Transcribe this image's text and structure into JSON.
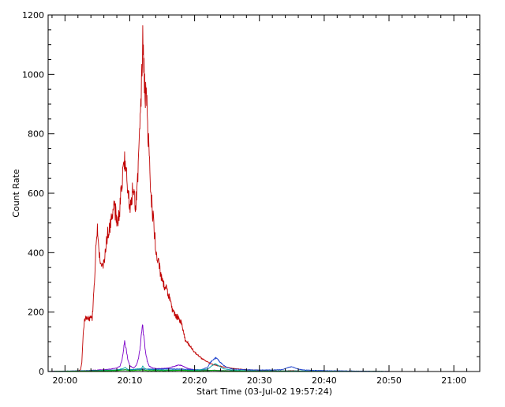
{
  "chart_data": {
    "type": "line",
    "title": "",
    "xlabel": "Start Time (03-Jul-02 19:57:24)",
    "ylabel": "Count Rate",
    "xlim_minutes_after_2000": [
      -2.6,
      64.0
    ],
    "ylim": [
      0,
      1200
    ],
    "x_ticks": [
      {
        "label": "20:00",
        "minutes_after_2000": 0
      },
      {
        "label": "20:10",
        "minutes_after_2000": 10
      },
      {
        "label": "20:20",
        "minutes_after_2000": 20
      },
      {
        "label": "20:30",
        "minutes_after_2000": 30
      },
      {
        "label": "20:40",
        "minutes_after_2000": 40
      },
      {
        "label": "20:50",
        "minutes_after_2000": 50
      },
      {
        "label": "21:00",
        "minutes_after_2000": 60
      }
    ],
    "y_ticks": [
      0,
      200,
      400,
      600,
      800,
      1000,
      1200
    ],
    "grid": false,
    "legend": "none",
    "x_unit": "minutes after 20:00",
    "series": [
      {
        "color": "#c00000",
        "points": [
          [
            -2.6,
            0
          ],
          [
            2.0,
            2
          ],
          [
            2.4,
            6
          ],
          [
            2.6,
            30
          ],
          [
            2.8,
            120
          ],
          [
            3.0,
            170
          ],
          [
            3.4,
            185
          ],
          [
            3.8,
            170
          ],
          [
            4.0,
            195
          ],
          [
            4.2,
            175
          ],
          [
            4.5,
            290
          ],
          [
            4.8,
            420
          ],
          [
            5.0,
            470
          ],
          [
            5.3,
            400
          ],
          [
            5.6,
            360
          ],
          [
            6.0,
            360
          ],
          [
            6.3,
            410
          ],
          [
            6.6,
            470
          ],
          [
            7.0,
            500
          ],
          [
            7.3,
            530
          ],
          [
            7.6,
            560
          ],
          [
            7.9,
            520
          ],
          [
            8.2,
            500
          ],
          [
            8.5,
            560
          ],
          [
            8.8,
            640
          ],
          [
            9.1,
            690
          ],
          [
            9.4,
            720
          ],
          [
            9.7,
            620
          ],
          [
            10.0,
            560
          ],
          [
            10.3,
            590
          ],
          [
            10.6,
            620
          ],
          [
            10.9,
            560
          ],
          [
            11.2,
            650
          ],
          [
            11.5,
            800
          ],
          [
            11.8,
            950
          ],
          [
            12.0,
            1105
          ],
          [
            12.3,
            960
          ],
          [
            12.6,
            900
          ],
          [
            12.9,
            780
          ],
          [
            13.2,
            620
          ],
          [
            13.6,
            520
          ],
          [
            14.0,
            420
          ],
          [
            14.4,
            370
          ],
          [
            14.8,
            320
          ],
          [
            15.2,
            290
          ],
          [
            15.6,
            280
          ],
          [
            16.0,
            260
          ],
          [
            16.5,
            210
          ],
          [
            17.0,
            190
          ],
          [
            17.5,
            180
          ],
          [
            18.0,
            165
          ],
          [
            18.5,
            110
          ],
          [
            19.0,
            95
          ],
          [
            19.5,
            80
          ],
          [
            20.0,
            65
          ],
          [
            20.5,
            55
          ],
          [
            21.0,
            45
          ],
          [
            21.5,
            38
          ],
          [
            22.0,
            32
          ],
          [
            22.5,
            26
          ],
          [
            23.0,
            22
          ],
          [
            23.5,
            20
          ],
          [
            24.0,
            18
          ],
          [
            24.5,
            15
          ],
          [
            25.0,
            14
          ],
          [
            25.5,
            12
          ],
          [
            26.0,
            10
          ],
          [
            26.5,
            9
          ],
          [
            27.0,
            8
          ],
          [
            28.0,
            6
          ],
          [
            29.0,
            5
          ],
          [
            30.0,
            4
          ],
          [
            31.0,
            3
          ],
          [
            32.0,
            3
          ],
          [
            33.0,
            2
          ],
          [
            34.0,
            2
          ],
          [
            35.0,
            3
          ],
          [
            36.0,
            2
          ],
          [
            37.0,
            1
          ],
          [
            38.0,
            1
          ],
          [
            40.0,
            1
          ],
          [
            42.0,
            1
          ],
          [
            44.0,
            1
          ],
          [
            46.0,
            0
          ],
          [
            48.0,
            0
          ],
          [
            50.0,
            0
          ]
        ]
      },
      {
        "color": "#7b00c8",
        "points": [
          [
            -2.6,
            0
          ],
          [
            2.0,
            1
          ],
          [
            4.0,
            4
          ],
          [
            6.0,
            6
          ],
          [
            7.0,
            8
          ],
          [
            7.5,
            10
          ],
          [
            8.0,
            12
          ],
          [
            8.5,
            18
          ],
          [
            8.8,
            40
          ],
          [
            9.0,
            70
          ],
          [
            9.2,
            100
          ],
          [
            9.4,
            80
          ],
          [
            9.7,
            40
          ],
          [
            10.0,
            20
          ],
          [
            10.3,
            15
          ],
          [
            10.6,
            12
          ],
          [
            11.0,
            20
          ],
          [
            11.3,
            40
          ],
          [
            11.6,
            80
          ],
          [
            11.8,
            130
          ],
          [
            11.95,
            160
          ],
          [
            12.1,
            130
          ],
          [
            12.4,
            70
          ],
          [
            12.7,
            35
          ],
          [
            13.0,
            18
          ],
          [
            13.5,
            12
          ],
          [
            14.0,
            10
          ],
          [
            15.0,
            10
          ],
          [
            16.0,
            12
          ],
          [
            17.0,
            18
          ],
          [
            17.5,
            22
          ],
          [
            18.0,
            20
          ],
          [
            18.5,
            15
          ],
          [
            19.0,
            10
          ],
          [
            20.0,
            6
          ],
          [
            21.0,
            5
          ],
          [
            22.0,
            4
          ],
          [
            23.0,
            4
          ],
          [
            24.0,
            3
          ],
          [
            25.0,
            3
          ],
          [
            26.0,
            2
          ],
          [
            28.0,
            2
          ],
          [
            30.0,
            1
          ],
          [
            32.0,
            1
          ],
          [
            34.0,
            1
          ],
          [
            36.0,
            1
          ],
          [
            40.0,
            1
          ],
          [
            44.0,
            0
          ],
          [
            50.0,
            0
          ]
        ]
      },
      {
        "color": "#1a3fcc",
        "points": [
          [
            -2.6,
            0
          ],
          [
            4.0,
            3
          ],
          [
            6.0,
            4
          ],
          [
            8.0,
            5
          ],
          [
            10.0,
            6
          ],
          [
            12.0,
            8
          ],
          [
            14.0,
            8
          ],
          [
            16.0,
            9
          ],
          [
            18.0,
            8
          ],
          [
            20.0,
            6
          ],
          [
            21.0,
            6
          ],
          [
            22.0,
            14
          ],
          [
            22.5,
            32
          ],
          [
            23.0,
            42
          ],
          [
            23.3,
            46
          ],
          [
            23.6,
            40
          ],
          [
            24.0,
            30
          ],
          [
            24.5,
            20
          ],
          [
            25.0,
            14
          ],
          [
            25.5,
            10
          ],
          [
            26.0,
            8
          ],
          [
            28.0,
            6
          ],
          [
            30.0,
            5
          ],
          [
            32.0,
            5
          ],
          [
            33.5,
            6
          ],
          [
            34.0,
            10
          ],
          [
            34.5,
            14
          ],
          [
            35.0,
            16
          ],
          [
            35.5,
            12
          ],
          [
            36.0,
            8
          ],
          [
            37.0,
            5
          ],
          [
            38.0,
            4
          ],
          [
            40.0,
            3
          ],
          [
            42.0,
            2
          ],
          [
            44.0,
            2
          ],
          [
            46.0,
            1
          ],
          [
            50.0,
            0
          ]
        ]
      },
      {
        "color": "#00a0a0",
        "points": [
          [
            -2.6,
            0
          ],
          [
            4.0,
            2
          ],
          [
            8.0,
            5
          ],
          [
            9.0,
            10
          ],
          [
            9.3,
            14
          ],
          [
            9.6,
            8
          ],
          [
            10.0,
            6
          ],
          [
            11.8,
            10
          ],
          [
            12.0,
            18
          ],
          [
            12.3,
            10
          ],
          [
            13.0,
            6
          ],
          [
            16.0,
            5
          ],
          [
            18.0,
            5
          ],
          [
            20.0,
            4
          ],
          [
            22.0,
            8
          ],
          [
            22.7,
            20
          ],
          [
            23.2,
            26
          ],
          [
            23.8,
            18
          ],
          [
            24.5,
            9
          ],
          [
            26.0,
            4
          ],
          [
            28.0,
            3
          ],
          [
            30.0,
            2
          ],
          [
            35.0,
            2
          ],
          [
            40.0,
            1
          ],
          [
            50.0,
            0
          ]
        ]
      },
      {
        "color": "#00b000",
        "points": [
          [
            -2.6,
            0
          ],
          [
            4.0,
            2
          ],
          [
            8.0,
            3
          ],
          [
            9.3,
            6
          ],
          [
            10.0,
            3
          ],
          [
            12.0,
            5
          ],
          [
            13.0,
            3
          ],
          [
            16.0,
            3
          ],
          [
            18.0,
            4
          ],
          [
            20.0,
            2
          ],
          [
            23.0,
            4
          ],
          [
            25.0,
            2
          ],
          [
            30.0,
            1
          ],
          [
            40.0,
            0
          ],
          [
            50.0,
            0
          ]
        ]
      }
    ]
  }
}
